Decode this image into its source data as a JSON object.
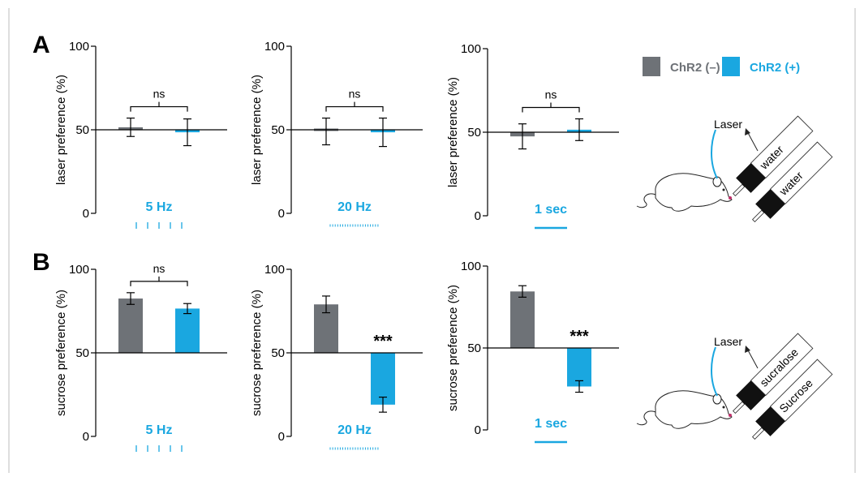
{
  "colors": {
    "chr2_neg": "#6e7277",
    "chr2_pos": "#1aa7e0",
    "frame": "#bdbdbd",
    "axis": "#000000"
  },
  "legend": {
    "items": [
      {
        "label": "ChR2 (–)",
        "color": "#6e7277"
      },
      {
        "label": "ChR2 (+)",
        "color": "#1aa7e0"
      }
    ]
  },
  "panels": [
    {
      "letter": "A"
    },
    {
      "letter": "B"
    }
  ],
  "chart_data": [
    {
      "type": "bar",
      "panel": "A",
      "ylabel": "laser preference (%)",
      "ylim": [
        0,
        100
      ],
      "yticks": [
        "0",
        "50",
        "100"
      ],
      "baseline": 50,
      "categories": [
        "ChR2 (–)",
        "ChR2 (+)"
      ],
      "series": [
        {
          "name": "ChR2 (–)",
          "value": 51.5,
          "error": 5.5
        },
        {
          "name": "ChR2 (+)",
          "value": 48.5,
          "error": 8
        }
      ],
      "condition": "5 Hz",
      "stim": "pulses5",
      "significance": "ns"
    },
    {
      "type": "bar",
      "panel": "A",
      "ylabel": "laser preference (%)",
      "ylim": [
        0,
        100
      ],
      "yticks": [
        "0",
        "50",
        "100"
      ],
      "baseline": 50,
      "categories": [
        "ChR2 (–)",
        "ChR2 (+)"
      ],
      "series": [
        {
          "name": "ChR2 (–)",
          "value": 49,
          "error": 8
        },
        {
          "name": "ChR2 (+)",
          "value": 48.5,
          "error": 8.5
        }
      ],
      "condition": "20 Hz",
      "stim": "pulses20",
      "significance": "ns"
    },
    {
      "type": "bar",
      "panel": "A",
      "ylabel": "laser preference (%)",
      "ylim": [
        0,
        100
      ],
      "yticks": [
        "0",
        "50",
        "100"
      ],
      "baseline": 50,
      "categories": [
        "ChR2 (–)",
        "ChR2 (+)"
      ],
      "series": [
        {
          "name": "ChR2 (–)",
          "value": 47.5,
          "error": 7.5
        },
        {
          "name": "ChR2 (+)",
          "value": 51.5,
          "error": 6.5
        }
      ],
      "condition": "1 sec",
      "stim": "continuous",
      "significance": "ns"
    },
    {
      "type": "bar",
      "panel": "B",
      "ylabel": "sucrose preference (%)",
      "ylim": [
        0,
        100
      ],
      "yticks": [
        "0",
        "50",
        "100"
      ],
      "baseline": 50,
      "categories": [
        "ChR2 (–)",
        "ChR2 (+)"
      ],
      "series": [
        {
          "name": "ChR2 (–)",
          "value": 82.5,
          "error": 3.5
        },
        {
          "name": "ChR2 (+)",
          "value": 76.5,
          "error": 3
        }
      ],
      "condition": "5 Hz",
      "stim": "pulses5",
      "significance": "ns"
    },
    {
      "type": "bar",
      "panel": "B",
      "ylabel": "sucrose preference (%)",
      "ylim": [
        0,
        100
      ],
      "yticks": [
        "0",
        "50",
        "100"
      ],
      "baseline": 50,
      "categories": [
        "ChR2 (–)",
        "ChR2 (+)"
      ],
      "series": [
        {
          "name": "ChR2 (–)",
          "value": 79,
          "error": 5
        },
        {
          "name": "ChR2 (+)",
          "value": 19,
          "error": 4.5
        }
      ],
      "condition": "20 Hz",
      "stim": "pulses20",
      "significance": "***"
    },
    {
      "type": "bar",
      "panel": "B",
      "ylabel": "sucrose preference (%)",
      "ylim": [
        0,
        100
      ],
      "yticks": [
        "0",
        "50",
        "100"
      ],
      "baseline": 50,
      "categories": [
        "ChR2 (–)",
        "ChR2 (+)"
      ],
      "series": [
        {
          "name": "ChR2 (–)",
          "value": 84.5,
          "error": 3.5
        },
        {
          "name": "ChR2 (+)",
          "value": 26.5,
          "error": 3.5
        }
      ],
      "condition": "1 sec",
      "stim": "continuous",
      "significance": "***"
    }
  ],
  "illustrations": [
    {
      "laser_label": "Laser",
      "bottle_labels": [
        "water",
        "water"
      ]
    },
    {
      "laser_label": "Laser",
      "bottle_labels": [
        "sucralose",
        "Sucrose"
      ]
    }
  ]
}
